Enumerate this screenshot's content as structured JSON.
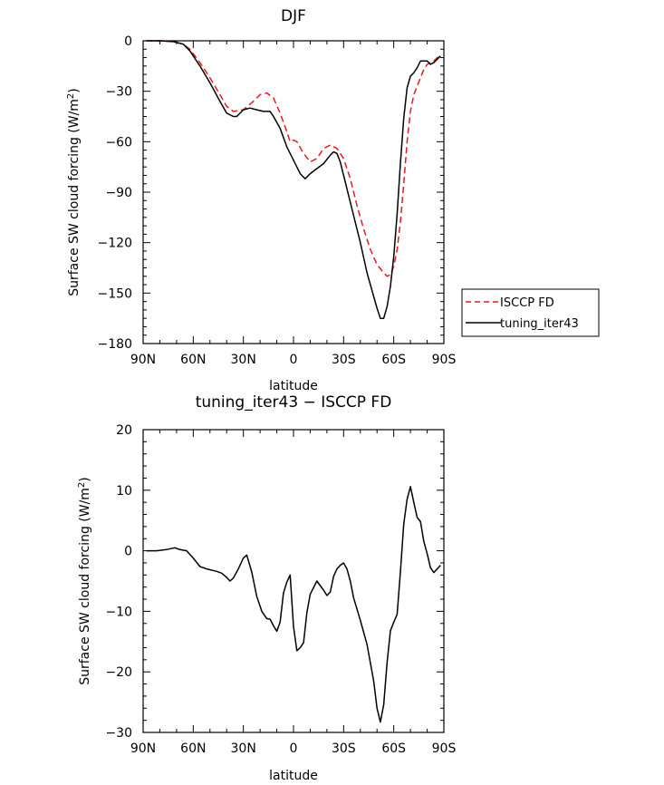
{
  "chart_data": [
    {
      "type": "line",
      "title": "DJF",
      "xlabel": "latitude",
      "ylabel_main": "Surface SW cloud forcing (W/m",
      "ylabel_sup": "2",
      "ylabel_close": ")",
      "xlim": [
        -90,
        90
      ],
      "ylim": [
        -180,
        0
      ],
      "xticks": [
        {
          "value": -90,
          "label": "90N"
        },
        {
          "value": -60,
          "label": "60N"
        },
        {
          "value": -30,
          "label": "30N"
        },
        {
          "value": 0,
          "label": "0"
        },
        {
          "value": 30,
          "label": "30S"
        },
        {
          "value": 60,
          "label": "60S"
        },
        {
          "value": 90,
          "label": "90S"
        }
      ],
      "yticks": [
        {
          "value": 0,
          "label": "0"
        },
        {
          "value": -30,
          "label": "−30"
        },
        {
          "value": -60,
          "label": "−60"
        },
        {
          "value": -90,
          "label": "−90"
        },
        {
          "value": -120,
          "label": "−120"
        },
        {
          "value": -150,
          "label": "−150"
        },
        {
          "value": -180,
          "label": "−180"
        }
      ],
      "legend": {
        "position": "outside-right",
        "entries": [
          "ISCCP FD",
          "tuning_iter43"
        ]
      },
      "series": [
        {
          "name": "ISCCP FD",
          "color": "#e8191c",
          "dash": "dashed",
          "x": [
            -88,
            -80,
            -72,
            -66,
            -62,
            -56,
            -50,
            -44,
            -40,
            -36,
            -30,
            -24,
            -20,
            -16,
            -12,
            -8,
            -4,
            -2,
            0,
            2,
            6,
            10,
            14,
            18,
            22,
            26,
            30,
            34,
            38,
            42,
            46,
            50,
            54,
            56,
            58,
            60,
            62,
            64,
            66,
            68,
            70,
            72,
            74,
            76,
            78,
            80,
            82,
            84,
            86,
            88
          ],
          "values": [
            0,
            0,
            -0.5,
            -2,
            -5,
            -13,
            -22,
            -32,
            -39,
            -42,
            -41,
            -36,
            -32,
            -31,
            -34,
            -43,
            -54,
            -60,
            -59,
            -60,
            -67,
            -72,
            -70,
            -64,
            -62,
            -64,
            -70,
            -82,
            -98,
            -112,
            -124,
            -133,
            -138,
            -140,
            -139,
            -134,
            -124,
            -108,
            -85,
            -60,
            -42,
            -32,
            -27,
            -22,
            -17,
            -14,
            -13,
            -12,
            -10,
            -9
          ]
        },
        {
          "name": "tuning_iter43",
          "color": "#000000",
          "dash": "solid",
          "x": [
            -88,
            -80,
            -72,
            -66,
            -62,
            -56,
            -50,
            -44,
            -40,
            -36,
            -34,
            -30,
            -26,
            -22,
            -18,
            -14,
            -12,
            -8,
            -4,
            0,
            4,
            7,
            10,
            14,
            18,
            22,
            24,
            26,
            28,
            32,
            36,
            40,
            44,
            48,
            50,
            52,
            54,
            56,
            58,
            60,
            62,
            64,
            66,
            68,
            70,
            72,
            74,
            76,
            78,
            80,
            82,
            84,
            86,
            88
          ],
          "values": [
            0,
            0,
            -0.5,
            -2,
            -6,
            -15,
            -25,
            -36,
            -43,
            -45,
            -45,
            -41,
            -40,
            -41,
            -42,
            -42,
            -45,
            -52,
            -63,
            -71,
            -79,
            -82,
            -79,
            -76,
            -73,
            -68,
            -66,
            -67,
            -72,
            -88,
            -104,
            -120,
            -138,
            -152,
            -159,
            -165,
            -165,
            -158,
            -146,
            -128,
            -103,
            -73,
            -46,
            -28,
            -21,
            -19,
            -16,
            -12,
            -12,
            -12,
            -14,
            -13,
            -11,
            -9
          ]
        }
      ]
    },
    {
      "type": "line",
      "title": "tuning_iter43 − ISCCP FD",
      "xlabel": "latitude",
      "ylabel_main": "Surface SW cloud forcing (W/m",
      "ylabel_sup": "2",
      "ylabel_close": ")",
      "xlim": [
        -90,
        90
      ],
      "ylim": [
        -30,
        20
      ],
      "xticks": [
        {
          "value": -90,
          "label": "90N"
        },
        {
          "value": -60,
          "label": "60N"
        },
        {
          "value": -30,
          "label": "30N"
        },
        {
          "value": 0,
          "label": "0"
        },
        {
          "value": 30,
          "label": "30S"
        },
        {
          "value": 60,
          "label": "60S"
        },
        {
          "value": 90,
          "label": "90S"
        }
      ],
      "yticks": [
        {
          "value": 20,
          "label": "20"
        },
        {
          "value": 10,
          "label": "10"
        },
        {
          "value": 0,
          "label": "0"
        },
        {
          "value": -10,
          "label": "−10"
        },
        {
          "value": -20,
          "label": "−20"
        },
        {
          "value": -30,
          "label": "−30"
        }
      ],
      "series": [
        {
          "name": "tuning_iter43 − ISCCP FD",
          "color": "#000000",
          "dash": "solid",
          "x": [
            -88,
            -82,
            -76,
            -71,
            -68,
            -64,
            -60,
            -56,
            -52,
            -46,
            -43,
            -40,
            -38,
            -36,
            -33,
            -30,
            -28,
            -25,
            -22,
            -19,
            -16,
            -14,
            -12,
            -10,
            -8,
            -6,
            -4,
            -2,
            0,
            2,
            4,
            6,
            8,
            10,
            14,
            18,
            20,
            22,
            24,
            26,
            28,
            30,
            32,
            34,
            36,
            40,
            44,
            48,
            50,
            52,
            54,
            56,
            58,
            60,
            62,
            64,
            66,
            68,
            70,
            72,
            74,
            76,
            78,
            80,
            82,
            84,
            86,
            88
          ],
          "values": [
            0,
            0,
            0.2,
            0.5,
            0.2,
            0,
            -1.2,
            -2.6,
            -3,
            -3.4,
            -3.7,
            -4.4,
            -5,
            -4.5,
            -3,
            -1.2,
            -0.7,
            -3.5,
            -7.5,
            -10,
            -11.2,
            -11.3,
            -12.4,
            -13.3,
            -11.8,
            -7,
            -5.2,
            -4,
            -12.5,
            -16.5,
            -16,
            -15.2,
            -10.2,
            -7.2,
            -5,
            -6.5,
            -7.4,
            -6.8,
            -4.2,
            -3,
            -2.4,
            -2,
            -3,
            -5,
            -7.8,
            -11.5,
            -15.5,
            -21.5,
            -26,
            -28.3,
            -25.4,
            -18.5,
            -13.2,
            -11.8,
            -10.5,
            -3.5,
            4.4,
            8.5,
            10.6,
            8,
            5.5,
            4.8,
            1.5,
            -0.5,
            -2.8,
            -3.6,
            -3,
            -2.4
          ]
        }
      ]
    }
  ]
}
